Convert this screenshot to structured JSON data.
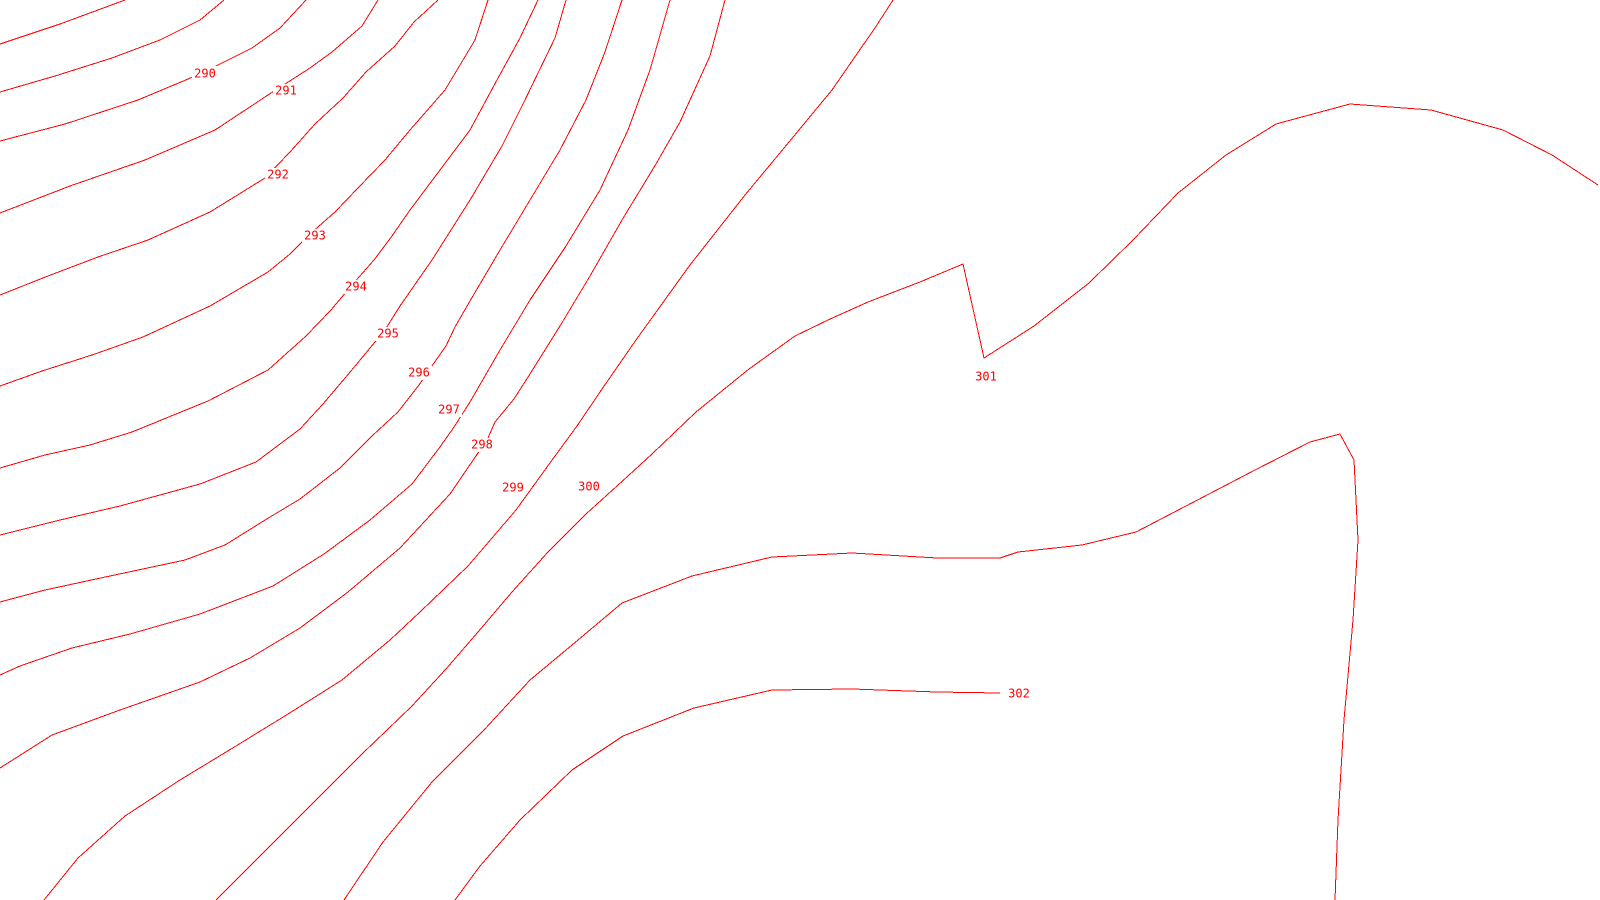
{
  "map": {
    "type": "contour-map",
    "line_color": "#ff0000",
    "background": "#ffffff",
    "contours": [
      {
        "id": "c-289a",
        "elevation": null
      },
      {
        "id": "c-290",
        "elevation": "290"
      },
      {
        "id": "c-291",
        "elevation": "291"
      },
      {
        "id": "c-292",
        "elevation": "292"
      },
      {
        "id": "c-293",
        "elevation": "293"
      },
      {
        "id": "c-294",
        "elevation": "294"
      },
      {
        "id": "c-295",
        "elevation": "295"
      },
      {
        "id": "c-296",
        "elevation": "296"
      },
      {
        "id": "c-297",
        "elevation": "297"
      },
      {
        "id": "c-298",
        "elevation": "298"
      },
      {
        "id": "c-299",
        "elevation": "299"
      },
      {
        "id": "c-300",
        "elevation": "300"
      },
      {
        "id": "c-301",
        "elevation": "301"
      },
      {
        "id": "c-302",
        "elevation": "302"
      }
    ],
    "labels": {
      "l290": "290",
      "l291": "291",
      "l292": "292",
      "l293": "293",
      "l294": "294",
      "l295": "295",
      "l296": "296",
      "l297": "297",
      "l298": "298",
      "l299": "299",
      "l300": "300",
      "l301": "301",
      "l302": "302"
    }
  }
}
